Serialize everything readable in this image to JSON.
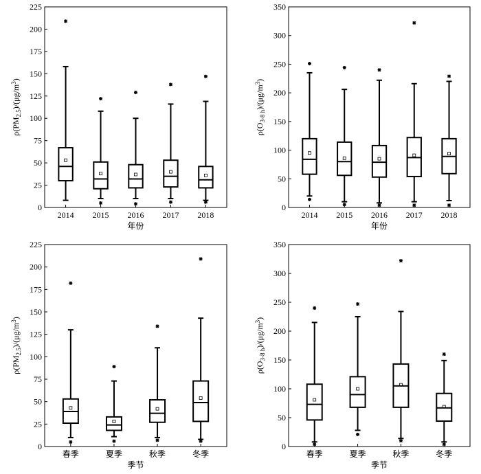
{
  "figure": {
    "panels_label": "Box plots of PM2.5 and O3-8h concentrations by year and by season"
  },
  "chart_data": [
    {
      "id": "pm25-year",
      "type": "box",
      "xlabel": "年份",
      "ylabel_parts": [
        "ρ(PM",
        "2.5",
        ")/(μg/m",
        "3",
        ")"
      ],
      "ylim": [
        0,
        225
      ],
      "yticks": [
        0,
        25,
        50,
        75,
        100,
        125,
        150,
        175,
        200,
        225
      ],
      "ytick_labels": [
        "0",
        "25",
        "50",
        "75",
        "100",
        "125",
        "150",
        "175",
        "200",
        "225"
      ],
      "categories": [
        "2014",
        "2015",
        "2016",
        "2017",
        "2018"
      ],
      "boxes": [
        {
          "whisker_low": 8,
          "q1": 30,
          "median": 46,
          "q3": 67,
          "whisker_high": 158,
          "mean": 53,
          "outliers_high": [
            209
          ],
          "outliers_low": []
        },
        {
          "whisker_low": 10,
          "q1": 21,
          "median": 32,
          "q3": 51,
          "whisker_high": 108,
          "mean": 38,
          "outliers_high": [
            122
          ],
          "outliers_low": [
            5
          ]
        },
        {
          "whisker_low": 10,
          "q1": 22,
          "median": 32,
          "q3": 48,
          "whisker_high": 100,
          "mean": 37,
          "outliers_high": [
            129
          ],
          "outliers_low": [
            4
          ]
        },
        {
          "whisker_low": 10,
          "q1": 23,
          "median": 35,
          "q3": 53,
          "whisker_high": 116,
          "mean": 40,
          "outliers_high": [
            138
          ],
          "outliers_low": [
            6
          ]
        },
        {
          "whisker_low": 8,
          "q1": 22,
          "median": 31,
          "q3": 46,
          "whisker_high": 119,
          "mean": 36,
          "outliers_high": [
            147
          ],
          "outliers_low": [
            6
          ]
        }
      ]
    },
    {
      "id": "o3-year",
      "type": "box",
      "xlabel": "年份",
      "ylabel_parts": [
        "ρ(O",
        "3-8 h",
        ")/(μg/m",
        "3",
        ")"
      ],
      "ylim": [
        0,
        350
      ],
      "yticks": [
        0,
        50,
        100,
        150,
        200,
        250,
        300,
        350
      ],
      "ytick_labels": [
        "0",
        "50",
        "100",
        "150",
        "200",
        "250",
        "300",
        "350"
      ],
      "categories": [
        "2014",
        "2015",
        "2016",
        "2017",
        "2018"
      ],
      "boxes": [
        {
          "whisker_low": 20,
          "q1": 58,
          "median": 84,
          "q3": 120,
          "whisker_high": 235,
          "mean": 95,
          "outliers_high": [
            251
          ],
          "outliers_low": [
            14
          ]
        },
        {
          "whisker_low": 10,
          "q1": 56,
          "median": 80,
          "q3": 114,
          "whisker_high": 206,
          "mean": 86,
          "outliers_high": [
            244
          ],
          "outliers_low": [
            5
          ]
        },
        {
          "whisker_low": 8,
          "q1": 53,
          "median": 79,
          "q3": 108,
          "whisker_high": 222,
          "mean": 85,
          "outliers_high": [
            240
          ],
          "outliers_low": [
            4
          ]
        },
        {
          "whisker_low": 10,
          "q1": 54,
          "median": 87,
          "q3": 122,
          "whisker_high": 216,
          "mean": 91,
          "outliers_high": [
            322
          ],
          "outliers_low": [
            4
          ]
        },
        {
          "whisker_low": 12,
          "q1": 59,
          "median": 89,
          "q3": 120,
          "whisker_high": 220,
          "mean": 94,
          "outliers_high": [
            229
          ],
          "outliers_low": [
            4
          ]
        }
      ]
    },
    {
      "id": "pm25-season",
      "type": "box",
      "xlabel": "季节",
      "ylabel_parts": [
        "ρ(PM",
        "2.5",
        ")/(μg/m",
        "3",
        ")"
      ],
      "ylim": [
        0,
        225
      ],
      "yticks": [
        0,
        25,
        50,
        75,
        100,
        125,
        150,
        175,
        200,
        225
      ],
      "ytick_labels": [
        "0",
        "25",
        "50",
        "75",
        "100",
        "125",
        "150",
        "175",
        "200",
        "225"
      ],
      "categories": [
        "春季",
        "夏季",
        "秋季",
        "冬季"
      ],
      "boxes": [
        {
          "whisker_low": 10,
          "q1": 26,
          "median": 39,
          "q3": 53,
          "whisker_high": 130,
          "mean": 43,
          "outliers_high": [
            182
          ],
          "outliers_low": [
            5
          ]
        },
        {
          "whisker_low": 11,
          "q1": 18,
          "median": 24,
          "q3": 33,
          "whisker_high": 73,
          "mean": 28,
          "outliers_high": [
            89
          ],
          "outliers_low": [
            6
          ]
        },
        {
          "whisker_low": 10,
          "q1": 27,
          "median": 37,
          "q3": 52,
          "whisker_high": 110,
          "mean": 42,
          "outliers_high": [
            134
          ],
          "outliers_low": [
            7
          ]
        },
        {
          "whisker_low": 8,
          "q1": 28,
          "median": 49,
          "q3": 73,
          "whisker_high": 143,
          "mean": 54,
          "outliers_high": [
            209
          ],
          "outliers_low": [
            6
          ]
        }
      ]
    },
    {
      "id": "o3-season",
      "type": "box",
      "xlabel": "季节",
      "ylabel_parts": [
        "ρ(O",
        "3-8 h",
        ")/(μg/m",
        "3",
        ")"
      ],
      "ylim": [
        0,
        350
      ],
      "yticks": [
        0,
        50,
        100,
        150,
        200,
        250,
        300,
        350
      ],
      "ytick_labels": [
        "0",
        "50",
        "100",
        "150",
        "200",
        "250",
        "300",
        "350"
      ],
      "categories": [
        "春季",
        "夏季",
        "秋季",
        "冬季"
      ],
      "boxes": [
        {
          "whisker_low": 8,
          "q1": 46,
          "median": 73,
          "q3": 108,
          "whisker_high": 215,
          "mean": 81,
          "outliers_high": [
            240
          ],
          "outliers_low": [
            4
          ]
        },
        {
          "whisker_low": 28,
          "q1": 68,
          "median": 90,
          "q3": 121,
          "whisker_high": 225,
          "mean": 100,
          "outliers_high": [
            247
          ],
          "outliers_low": [
            21
          ]
        },
        {
          "whisker_low": 14,
          "q1": 68,
          "median": 105,
          "q3": 143,
          "whisker_high": 234,
          "mean": 107,
          "outliers_high": [
            322
          ],
          "outliers_low": [
            10
          ]
        },
        {
          "whisker_low": 8,
          "q1": 44,
          "median": 67,
          "q3": 92,
          "whisker_high": 149,
          "mean": 69,
          "outliers_high": [
            160
          ],
          "outliers_low": [
            4
          ]
        }
      ]
    }
  ]
}
